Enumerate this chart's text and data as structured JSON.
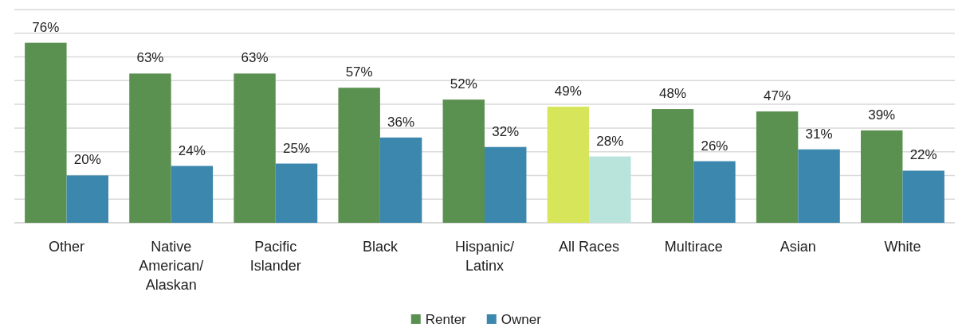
{
  "chart_data": {
    "type": "bar",
    "categories": [
      "Other",
      "Native American/ Alaskan",
      "Pacific Islander",
      "Black",
      "Hispanic/ Latinx",
      "All Races",
      "Multirace",
      "Asian",
      "White"
    ],
    "series": [
      {
        "name": "Renter",
        "color": "#5b9150",
        "colors": [
          "#5b9150",
          "#5b9150",
          "#5b9150",
          "#5b9150",
          "#5b9150",
          "#d6e55a",
          "#5b9150",
          "#5b9150",
          "#5b9150"
        ],
        "values": [
          76,
          63,
          63,
          57,
          52,
          49,
          48,
          47,
          39
        ],
        "value_labels": [
          "76%",
          "63%",
          "63%",
          "57%",
          "52%",
          "49%",
          "48%",
          "47%",
          "39%"
        ]
      },
      {
        "name": "Owner",
        "color": "#3c87ad",
        "colors": [
          "#3c87ad",
          "#3c87ad",
          "#3c87ad",
          "#3c87ad",
          "#3c87ad",
          "#b8e4dc",
          "#3c87ad",
          "#3c87ad",
          "#3c87ad"
        ],
        "values": [
          20,
          24,
          25,
          36,
          32,
          28,
          26,
          31,
          22
        ],
        "value_labels": [
          "20%",
          "24%",
          "25%",
          "36%",
          "32%",
          "28%",
          "26%",
          "31%",
          "22%"
        ]
      }
    ],
    "ylim": [
      0,
      90
    ],
    "yticks": [
      {
        "value": 0,
        "label": null
      },
      {
        "value": 10,
        "label": null
      },
      {
        "value": 20,
        "label": null
      },
      {
        "value": 30,
        "label": null
      },
      {
        "value": 40,
        "label": null
      },
      {
        "value": 50,
        "label": null
      },
      {
        "value": 60,
        "label": null
      },
      {
        "value": 70,
        "label": null
      },
      {
        "value": 80,
        "label": null
      },
      {
        "value": 90,
        "label": null
      }
    ],
    "grid": "y",
    "legend": "bottom",
    "tick_labels": "x"
  }
}
